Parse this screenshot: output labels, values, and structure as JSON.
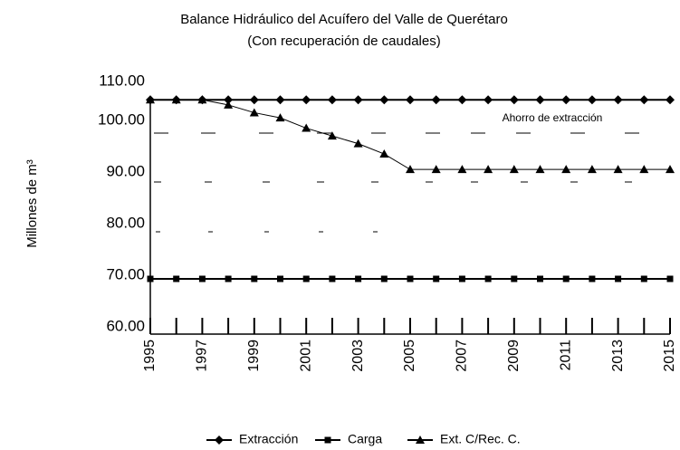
{
  "chart_data": {
    "type": "line",
    "title": "Balance Hidráulico del Acuífero del Valle de Querétaro",
    "subtitle": "(Con recuperación de caudales)",
    "y_label": "Millones de m³",
    "annotation": "Ahorro de extracción",
    "x": [
      1995,
      1996,
      1997,
      1998,
      1999,
      2000,
      2001,
      2002,
      2003,
      2004,
      2005,
      2006,
      2007,
      2008,
      2009,
      2010,
      2011,
      2012,
      2013,
      2014,
      2015
    ],
    "xticks": [
      1995,
      1997,
      1999,
      2001,
      2003,
      2005,
      2007,
      2009,
      2011,
      2013,
      2015
    ],
    "xlim": [
      1995,
      2015
    ],
    "ylim": [
      60,
      110
    ],
    "yticks": [
      {
        "value": 60,
        "label": "60.00"
      },
      {
        "value": 70,
        "label": "70.00"
      },
      {
        "value": 80,
        "label": "80.00"
      },
      {
        "value": 90,
        "label": "90.00"
      },
      {
        "value": 100,
        "label": "100.00"
      },
      {
        "value": 110,
        "label": "110.00"
      }
    ],
    "series": [
      {
        "name": "Extracción",
        "color": "#000000",
        "marker": "diamond",
        "values": [
          104,
          104,
          104,
          104,
          104,
          104,
          104,
          104,
          104,
          104,
          104,
          104,
          104,
          104,
          104,
          104,
          104,
          104,
          104,
          104,
          104
        ]
      },
      {
        "name": "Carga",
        "color": "#000000",
        "marker": "square",
        "values": [
          69.3,
          69.3,
          69.3,
          69.3,
          69.3,
          69.3,
          69.3,
          69.3,
          69.3,
          69.3,
          69.3,
          69.3,
          69.3,
          69.3,
          69.3,
          69.3,
          69.3,
          69.3,
          69.3,
          69.3,
          69.3
        ]
      },
      {
        "name": "Ext. C/Rec. C.",
        "color": "#000000",
        "marker": "triangle",
        "values": [
          104,
          104,
          104,
          103,
          101.5,
          100.5,
          98.5,
          97,
          95.5,
          93.5,
          90.5,
          90.5,
          90.5,
          90.5,
          90.5,
          90.5,
          90.5,
          90.5,
          90.5,
          90.5,
          90.5
        ]
      }
    ]
  }
}
